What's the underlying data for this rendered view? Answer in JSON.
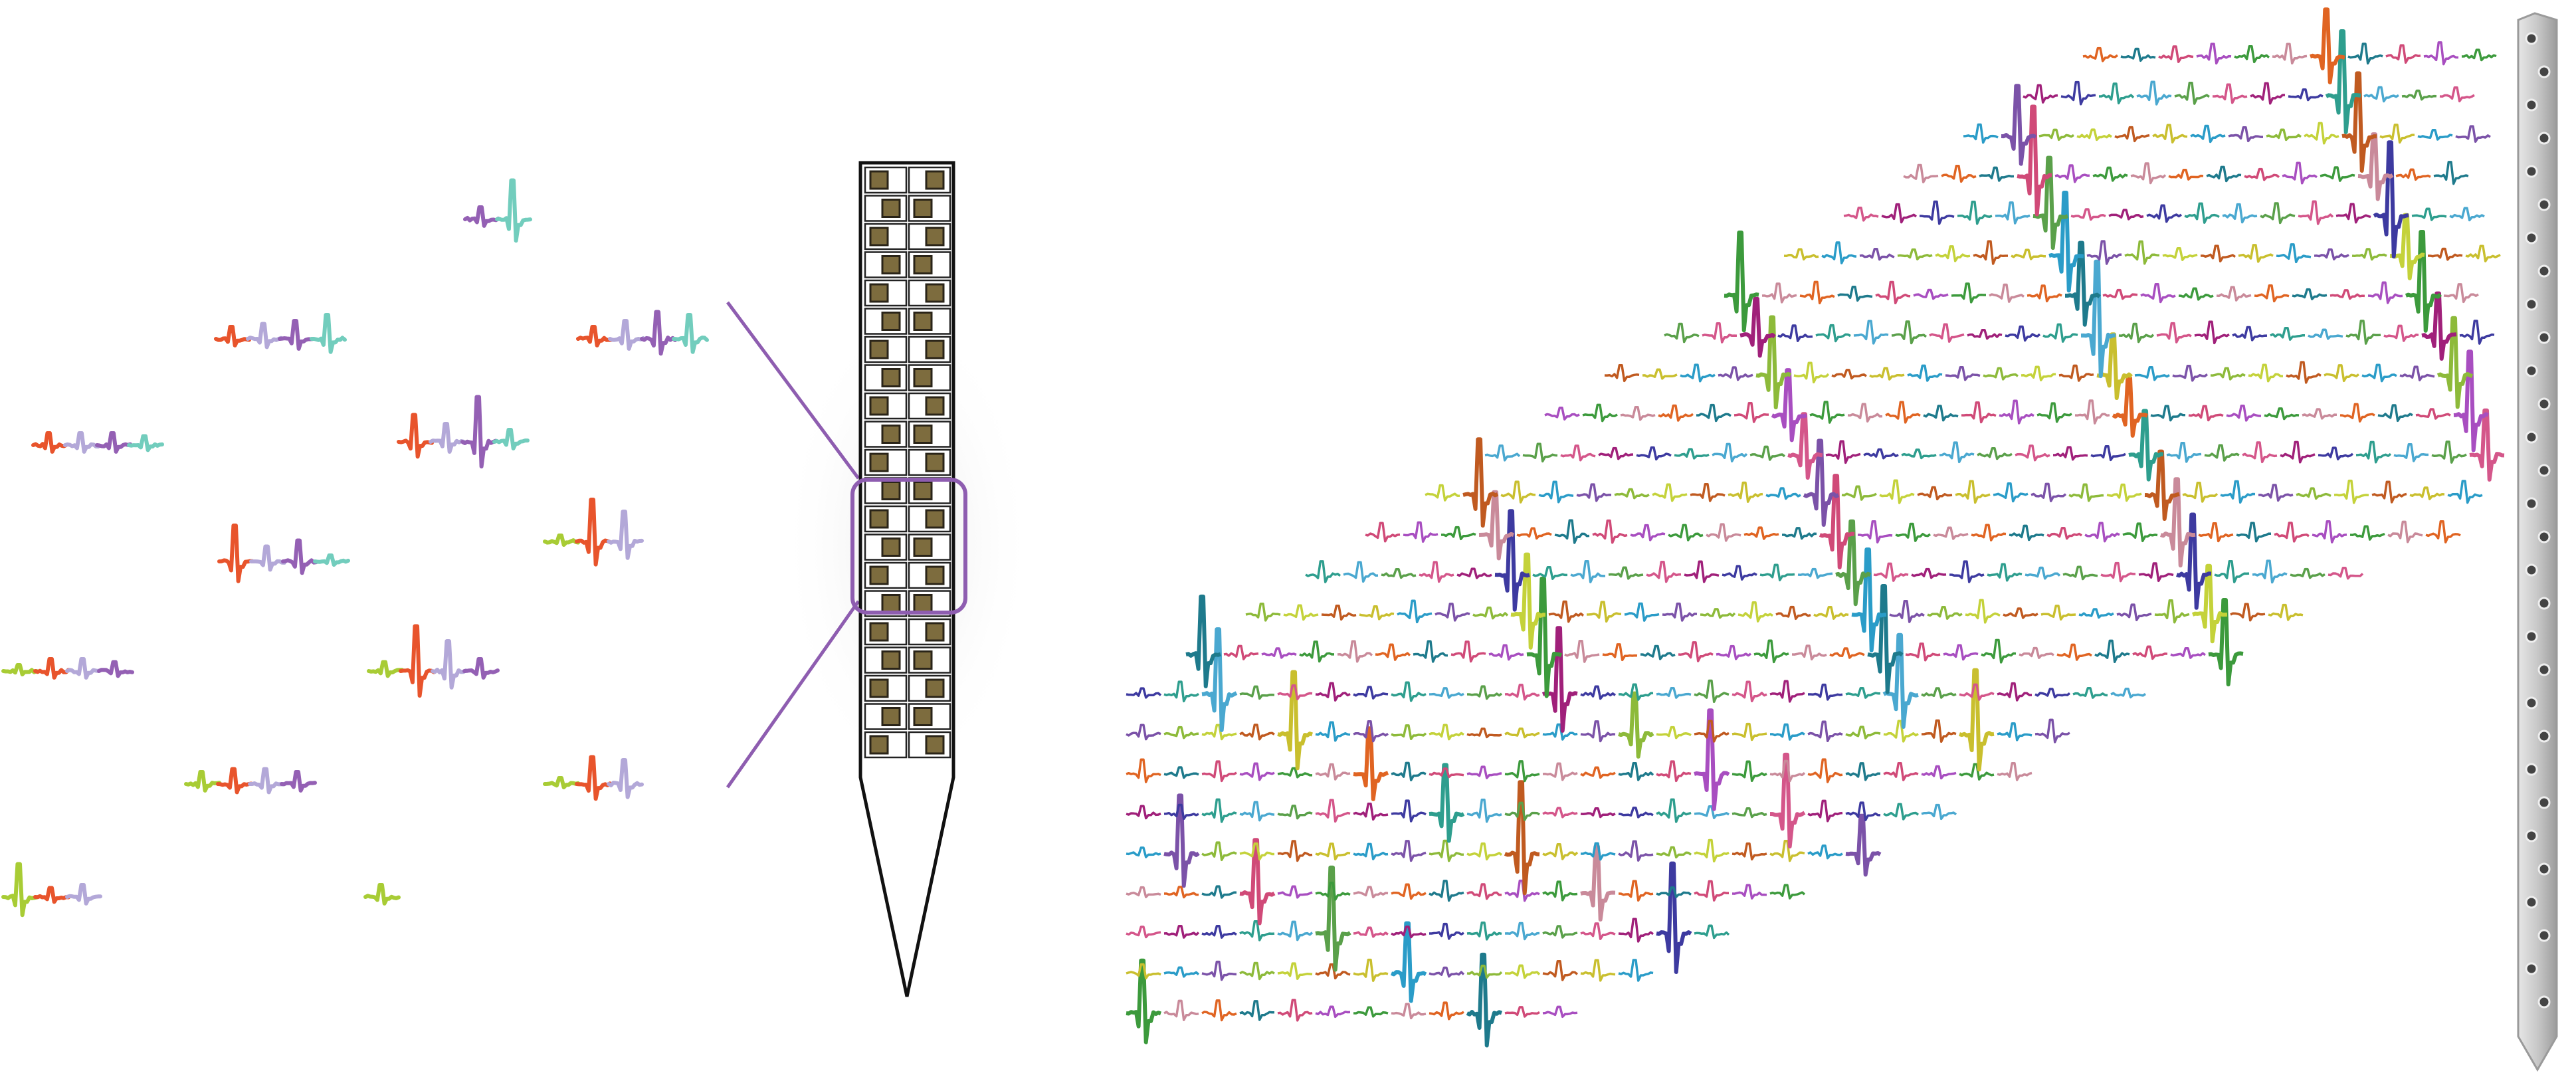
{
  "colors": {
    "red": "#e8542c",
    "lavender": "#b3a8d8",
    "purple": "#9460b4",
    "teal": "#72cdbd",
    "lime": "#a8cc35",
    "probe_outline": "#111111",
    "probe_highlight": "#8e5db0",
    "pad_fill": "#7d6c3e",
    "pad_dark": "#2a2418",
    "shank": "#cfcfcf",
    "shank_contact": "#444444",
    "trace_palette": [
      "#3c9a3c",
      "#c9bf2e",
      "#d4568a",
      "#c98a9a",
      "#2a9cc8",
      "#a0207a",
      "#e06422",
      "#7b52a8",
      "#3d3aa0",
      "#1e7a8c",
      "#8dba3a",
      "#2e9e8e",
      "#d04a78",
      "#c4d23a",
      "#4aa8d0",
      "#a84ec0",
      "#c05a20",
      "#5aa04a"
    ]
  },
  "icons": {
    "probe": "silicon-probe-icon",
    "shank": "probe-shank-icon"
  }
}
